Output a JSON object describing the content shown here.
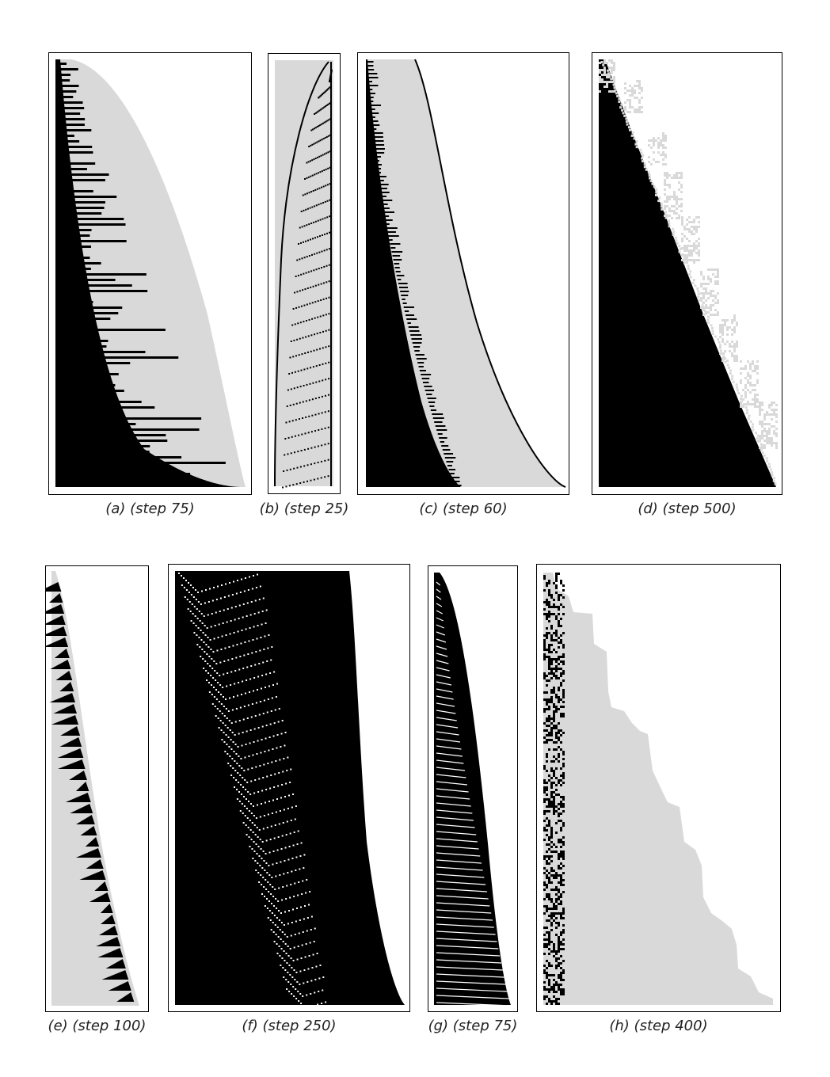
{
  "panels": [
    {
      "id": "a",
      "caption": "(a) (step 75)",
      "pattern": "tree-left",
      "fill": "#000000",
      "background": "#d9d9d9"
    },
    {
      "id": "b",
      "caption": "(b) (step 25)",
      "pattern": "dotted-wedge",
      "fill": "#000000",
      "background": "#d9d9d9"
    },
    {
      "id": "c",
      "caption": "(c) (step 60)",
      "pattern": "curve-boundary",
      "fill": "#000000",
      "background": "#d9d9d9"
    },
    {
      "id": "d",
      "caption": "(d) (step 500)",
      "pattern": "staircase-noise",
      "fill": "#000000",
      "background": "#ffffff"
    },
    {
      "id": "e",
      "caption": "(e) (step 100)",
      "pattern": "sparse-triangles",
      "fill": "#000000",
      "background": "#d9d9d9"
    },
    {
      "id": "f",
      "caption": "(f) (step 250)",
      "pattern": "black-dotted-chevrons",
      "fill": "#000000",
      "background": "#ffffff"
    },
    {
      "id": "g",
      "caption": "(g) (step 75)",
      "pattern": "nested-arcs",
      "fill": "#000000",
      "background": "#ffffff"
    },
    {
      "id": "h",
      "caption": "(h) (step 400)",
      "pattern": "gray-staircase",
      "fill": "#000000",
      "background": "#d9d9d9"
    }
  ]
}
